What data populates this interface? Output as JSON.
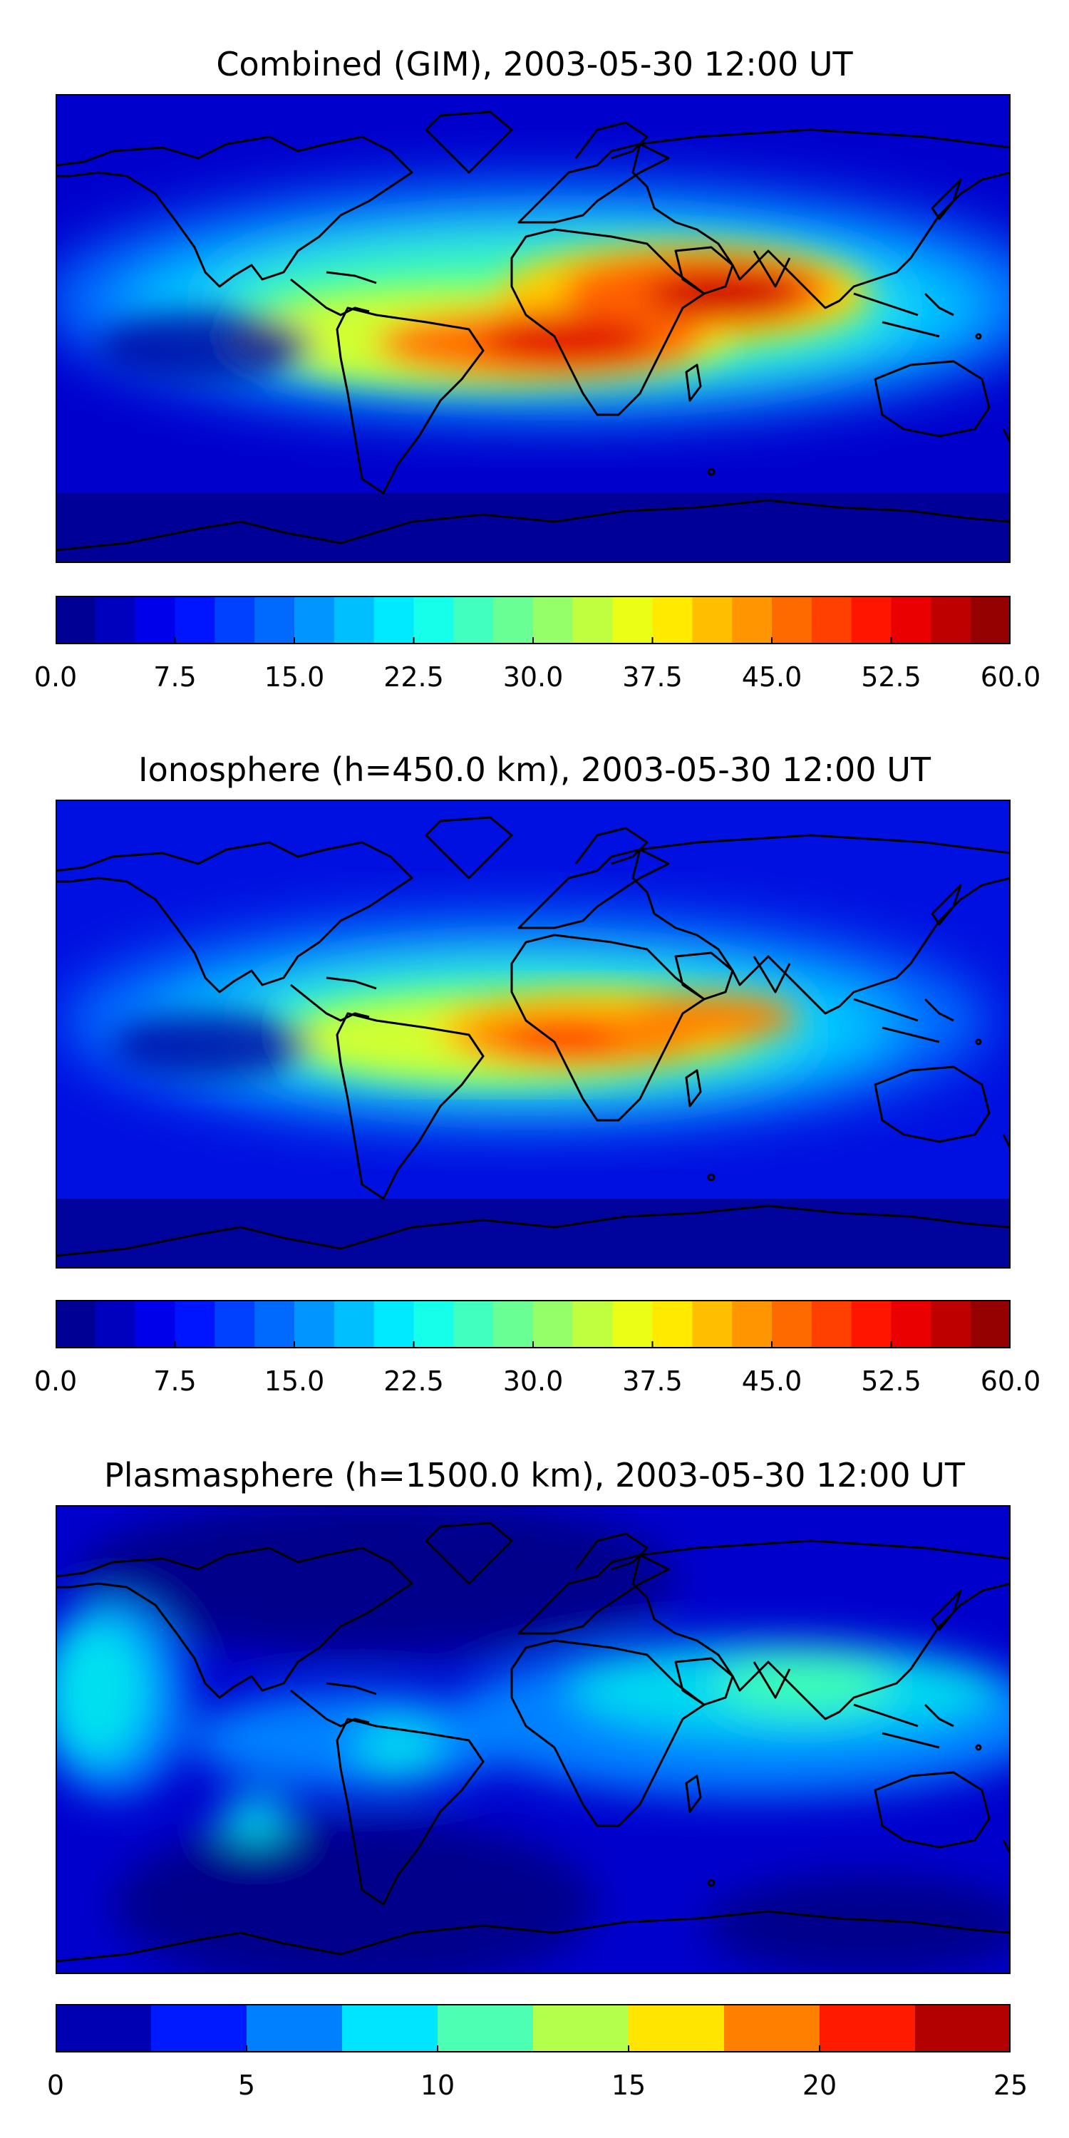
{
  "panels": [
    {
      "id": "combined",
      "title": "Combined (GIM), 2003-05-30 12:00 UT",
      "colorbar": {
        "min": 0,
        "max": 60,
        "levels": 24,
        "tick_labels": [
          "0.0",
          "7.5",
          "15.0",
          "22.5",
          "30.0",
          "37.5",
          "45.0",
          "52.5",
          "60.0"
        ]
      }
    },
    {
      "id": "ionosphere",
      "title": "Ionosphere  (h=450.0 km), 2003-05-30 12:00 UT",
      "colorbar": {
        "min": 0,
        "max": 60,
        "levels": 24,
        "tick_labels": [
          "0.0",
          "7.5",
          "15.0",
          "22.5",
          "30.0",
          "37.5",
          "45.0",
          "52.5",
          "60.0"
        ]
      }
    },
    {
      "id": "plasmasphere",
      "title": "Plasmasphere (h=1500.0 km), 2003-05-30 12:00 UT",
      "colorbar": {
        "min": 0,
        "max": 25,
        "levels": 10,
        "tick_labels": [
          "0",
          "5",
          "10",
          "15",
          "20",
          "25"
        ]
      }
    }
  ],
  "colormap": "jet",
  "coastline_color": "#000000",
  "map_projection": "equirectangular, global"
}
